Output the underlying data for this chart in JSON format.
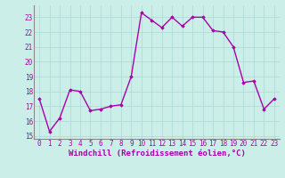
{
  "x": [
    0,
    1,
    2,
    3,
    4,
    5,
    6,
    7,
    8,
    9,
    10,
    11,
    12,
    13,
    14,
    15,
    16,
    17,
    18,
    19,
    20,
    21,
    22,
    23
  ],
  "y": [
    17.5,
    15.3,
    16.2,
    18.1,
    18.0,
    16.7,
    16.8,
    17.0,
    17.1,
    19.0,
    23.3,
    22.8,
    22.3,
    23.0,
    22.4,
    23.0,
    23.0,
    22.1,
    22.0,
    21.0,
    18.6,
    18.7,
    16.8,
    17.5
  ],
  "line_color": "#aa00aa",
  "marker": "D",
  "marker_size": 1.8,
  "bg_color": "#cceee8",
  "grid_color": "#aad8d4",
  "xlabel": "Windchill (Refroidissement éolien,°C)",
  "xlim": [
    -0.5,
    23.5
  ],
  "ylim": [
    14.8,
    23.8
  ],
  "yticks": [
    15,
    16,
    17,
    18,
    19,
    20,
    21,
    22,
    23
  ],
  "xticks": [
    0,
    1,
    2,
    3,
    4,
    5,
    6,
    7,
    8,
    9,
    10,
    11,
    12,
    13,
    14,
    15,
    16,
    17,
    18,
    19,
    20,
    21,
    22,
    23
  ],
  "tick_fontsize": 5.5,
  "xlabel_fontsize": 6.5,
  "line_width": 1.0,
  "spine_color": "#888888"
}
